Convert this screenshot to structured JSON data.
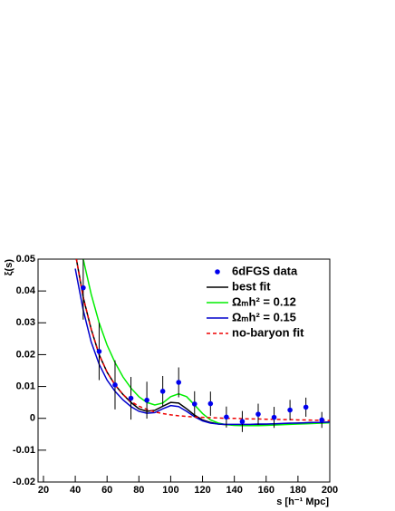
{
  "chart_data": {
    "type": "line",
    "xlabel": "s [h⁻¹ Mpc]",
    "ylabel": "ξ(s)",
    "xlim": [
      16.6,
      200
    ],
    "ylim": [
      -0.02,
      0.05
    ],
    "xticks": [
      20,
      40,
      60,
      80,
      100,
      120,
      140,
      160,
      180,
      200
    ],
    "yticks": [
      -0.02,
      -0.01,
      0,
      0.01,
      0.02,
      0.03,
      0.04,
      0.05
    ],
    "legend": "upper right",
    "points": {
      "name": "6dFGS data",
      "color": "#0000ee",
      "x": [
        45,
        55,
        65,
        75,
        85,
        95,
        105,
        115,
        125,
        135,
        145,
        155,
        165,
        175,
        185,
        195
      ],
      "values": [
        0.041,
        0.021,
        0.0105,
        0.0063,
        0.0057,
        0.0085,
        0.0113,
        0.0045,
        0.0046,
        0.0004,
        -0.001,
        0.0013,
        0.0003,
        0.0026,
        0.0035,
        -0.0005
      ],
      "errors": [
        0.01,
        0.009,
        0.0077,
        0.0067,
        0.0058,
        0.0048,
        0.0047,
        0.004,
        0.0038,
        0.0033,
        0.0033,
        0.0033,
        0.0033,
        0.0032,
        0.003,
        0.0025
      ]
    },
    "x": [
      40,
      45,
      50,
      55,
      60,
      65,
      70,
      75,
      80,
      85,
      90,
      95,
      100,
      105,
      110,
      115,
      120,
      125,
      130,
      135,
      140,
      145,
      150,
      155,
      160,
      165,
      170,
      175,
      180,
      185,
      190,
      195,
      200
    ],
    "series": [
      {
        "name": "best fit",
        "color": "#000000",
        "dash": false,
        "values": [
          0.052,
          0.038,
          0.028,
          0.02,
          0.0145,
          0.0105,
          0.0075,
          0.005,
          0.003,
          0.0022,
          0.0025,
          0.0038,
          0.005,
          0.0048,
          0.003,
          0.001,
          -0.0005,
          -0.0013,
          -0.0018,
          -0.002,
          -0.002,
          -0.002,
          -0.002,
          -0.0019,
          -0.0019,
          -0.0018,
          -0.0017,
          -0.0016,
          -0.0015,
          -0.0014,
          -0.0013,
          -0.0013,
          -0.0012
        ]
      },
      {
        "name": "Ωₘh² = 0.12",
        "color": "#00ee00",
        "dash": false,
        "values": [
          0.065,
          0.05,
          0.039,
          0.03,
          0.023,
          0.0175,
          0.013,
          0.0095,
          0.0068,
          0.005,
          0.0042,
          0.0048,
          0.0068,
          0.0077,
          0.0068,
          0.0042,
          0.0015,
          -0.0005,
          -0.0015,
          -0.002,
          -0.0022,
          -0.0023,
          -0.0023,
          -0.0023,
          -0.0022,
          -0.0021,
          -0.002,
          -0.0019,
          -0.0018,
          -0.0017,
          -0.0016,
          -0.0015,
          -0.0014
        ]
      },
      {
        "name": "Ωₘh² = 0.15",
        "color": "#0000cc",
        "dash": false,
        "values": [
          0.047,
          0.034,
          0.024,
          0.017,
          0.012,
          0.0085,
          0.0058,
          0.0037,
          0.0022,
          0.0016,
          0.0018,
          0.003,
          0.004,
          0.0037,
          0.0022,
          0.0005,
          -0.0008,
          -0.0015,
          -0.0018,
          -0.0019,
          -0.0019,
          -0.0019,
          -0.0019,
          -0.0018,
          -0.0018,
          -0.0017,
          -0.0016,
          -0.0015,
          -0.0015,
          -0.0014,
          -0.0013,
          -0.0013,
          -0.0012
        ]
      },
      {
        "name": "no-baryon fit",
        "color": "#ee0000",
        "dash": true,
        "values": [
          0.052,
          0.038,
          0.028,
          0.02,
          0.0145,
          0.0105,
          0.0075,
          0.0053,
          0.0038,
          0.0028,
          0.002,
          0.0015,
          0.0011,
          0.0008,
          0.0006,
          0.0004,
          0.0003,
          0.0002,
          0.0001,
          0,
          0,
          -0.0001,
          -0.0002,
          -0.0002,
          -0.0003,
          -0.0003,
          -0.0004,
          -0.0004,
          -0.0005,
          -0.0005,
          -0.0006,
          -0.0006,
          -0.0007
        ]
      }
    ]
  }
}
